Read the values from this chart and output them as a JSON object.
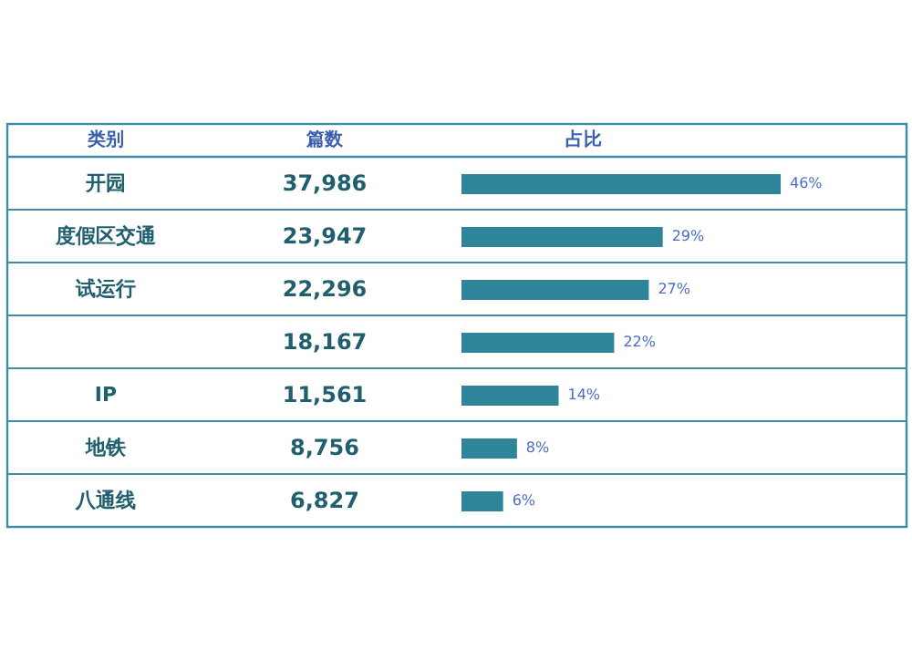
{
  "chart_data": {
    "type": "bar",
    "orientation": "horizontal",
    "ylabel": "类别",
    "xlabel": "占比",
    "legend_title": "篇数",
    "categories": [
      "开园",
      "度假区交通",
      "试运行",
      null,
      "IP",
      "地铁",
      "八通线"
    ],
    "values": [
      46,
      29,
      27,
      22,
      14,
      8,
      6
    ],
    "value_labels": [
      "46%",
      "29%",
      "27%",
      "22%",
      "14%",
      "8%",
      "6%"
    ],
    "annotations": [
      "37,986",
      "23,947",
      "22,296",
      "18,167",
      "11,561",
      "8,756",
      "6,827"
    ],
    "color": "#2e8599"
  }
}
